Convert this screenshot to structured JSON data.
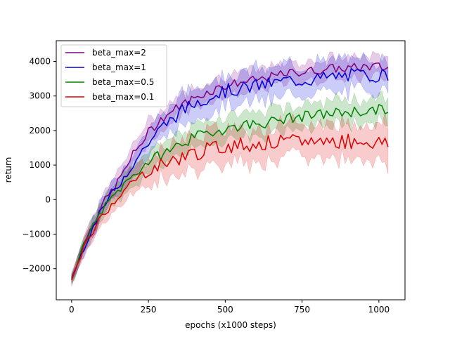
{
  "chart_data": {
    "type": "line",
    "xlabel": "epochs (x1000 steps)",
    "ylabel": "return",
    "xlim": [
      -50,
      1085
    ],
    "ylim": [
      -2900,
      4600
    ],
    "xticks": [
      0,
      250,
      500,
      750,
      1000
    ],
    "yticks": [
      -2000,
      -1000,
      0,
      1000,
      2000,
      3000,
      4000
    ],
    "grid": false,
    "legend_position": "top-left",
    "shaded_band": true,
    "series": [
      {
        "name": "beta_max=2",
        "color": "#800080",
        "x": [
          0,
          50,
          100,
          150,
          200,
          250,
          300,
          350,
          400,
          450,
          500,
          550,
          600,
          650,
          700,
          750,
          800,
          850,
          900,
          950,
          1000,
          1030
        ],
        "mean": [
          -2250,
          -1050,
          -150,
          500,
          1300,
          1950,
          2400,
          2700,
          2950,
          3150,
          3300,
          3400,
          3450,
          3550,
          3650,
          3700,
          3750,
          3800,
          3800,
          3850,
          3850,
          3800
        ],
        "spread": [
          150,
          250,
          250,
          300,
          300,
          300,
          300,
          300,
          300,
          300,
          300,
          300,
          300,
          300,
          300,
          300,
          300,
          300,
          300,
          300,
          300,
          300
        ]
      },
      {
        "name": "beta_max=1",
        "color": "#0000dd",
        "x": [
          0,
          50,
          100,
          150,
          200,
          250,
          300,
          350,
          400,
          450,
          500,
          550,
          600,
          650,
          700,
          750,
          800,
          850,
          900,
          950,
          1000,
          1030
        ],
        "mean": [
          -2300,
          -1150,
          -250,
          400,
          1050,
          1650,
          2150,
          2500,
          2800,
          3000,
          3150,
          3200,
          3300,
          3350,
          3450,
          3450,
          3500,
          3550,
          3600,
          3600,
          3600,
          3600
        ],
        "spread": [
          150,
          250,
          250,
          300,
          350,
          400,
          400,
          450,
          450,
          450,
          450,
          450,
          450,
          450,
          450,
          450,
          450,
          450,
          450,
          450,
          450,
          450
        ]
      },
      {
        "name": "beta_max=0.5",
        "color": "#008000",
        "x": [
          0,
          50,
          100,
          150,
          200,
          250,
          300,
          350,
          400,
          450,
          500,
          550,
          600,
          650,
          700,
          750,
          800,
          850,
          900,
          950,
          1000,
          1030
        ],
        "mean": [
          -2250,
          -1100,
          -300,
          250,
          700,
          1100,
          1350,
          1600,
          1800,
          1950,
          2050,
          2150,
          2200,
          2250,
          2350,
          2400,
          2450,
          2500,
          2550,
          2550,
          2600,
          2600
        ],
        "spread": [
          150,
          250,
          250,
          300,
          300,
          300,
          350,
          350,
          350,
          350,
          350,
          350,
          350,
          350,
          350,
          350,
          350,
          350,
          350,
          350,
          350,
          350
        ]
      },
      {
        "name": "beta_max=0.1",
        "color": "#dd0000",
        "x": [
          0,
          50,
          100,
          150,
          200,
          250,
          300,
          350,
          400,
          450,
          500,
          550,
          600,
          650,
          700,
          750,
          800,
          850,
          900,
          950,
          1000,
          1030
        ],
        "mean": [
          -2350,
          -1200,
          -450,
          100,
          500,
          850,
          1050,
          1200,
          1350,
          1450,
          1550,
          1600,
          1600,
          1650,
          1650,
          1700,
          1700,
          1700,
          1700,
          1700,
          1650,
          1600
        ],
        "spread": [
          150,
          250,
          300,
          300,
          350,
          400,
          450,
          450,
          500,
          500,
          500,
          500,
          500,
          500,
          500,
          500,
          500,
          500,
          500,
          500,
          550,
          600
        ]
      }
    ]
  }
}
